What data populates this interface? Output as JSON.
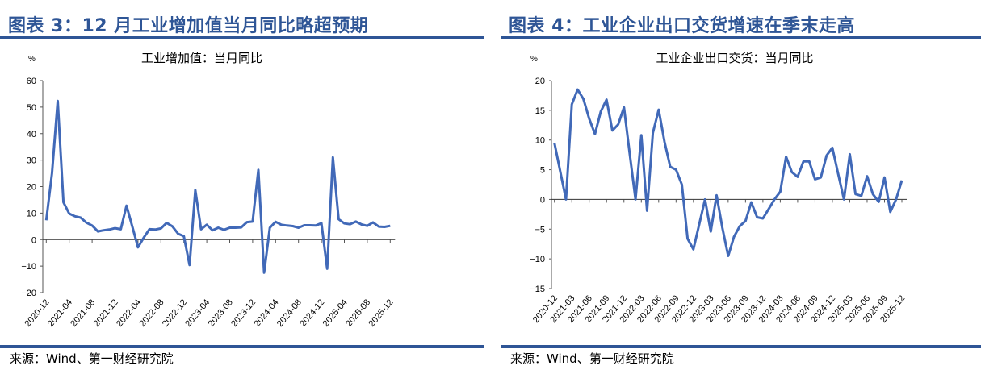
{
  "panels": [
    {
      "title": "图表 3：12 月工业增加值当月同比略超预期",
      "source": "来源：Wind、第一财经研究院"
    },
    {
      "title": "图表 4：工业企业出口交货增速在季末走高",
      "source": "来源：Wind、第一财经研究院"
    }
  ],
  "colors": {
    "accent": "#2e5596",
    "line": "#4169b8"
  },
  "chart_data": [
    {
      "type": "line",
      "title": "工业增加值：当月同比",
      "ylabel": "%",
      "ylim": [
        -20,
        60
      ],
      "yticks": [
        60,
        50,
        40,
        30,
        20,
        10,
        0,
        -10,
        -20
      ],
      "x_start": "2020-12",
      "tick_every": 4,
      "xticks": [
        "2020-12",
        "2021-04",
        "2021-08",
        "2021-12",
        "2022-04",
        "2022-08",
        "2022-12",
        "2023-04",
        "2023-08",
        "2023-12",
        "2024-04",
        "2024-08",
        "2024-12",
        "2025-04",
        "2025-08",
        "2025-12"
      ],
      "grid": false,
      "values": [
        7.3,
        25,
        52.3,
        14.1,
        9.8,
        8.8,
        8.3,
        6.4,
        5.3,
        3.1,
        3.5,
        3.8,
        4.3,
        3.9,
        12.8,
        5.0,
        -2.9,
        0.7,
        3.9,
        3.8,
        4.2,
        6.3,
        5.0,
        2.2,
        1.3,
        -9.6,
        18.7,
        3.9,
        5.6,
        3.5,
        4.5,
        3.7,
        4.5,
        4.5,
        4.6,
        6.6,
        6.8,
        26.3,
        -12.5,
        4.5,
        6.7,
        5.6,
        5.3,
        5.1,
        4.5,
        5.4,
        5.4,
        5.3,
        6.2,
        -11,
        31,
        7.7,
        6.1,
        5.8,
        6.8,
        5.7,
        5.2,
        6.5,
        4.9,
        4.8,
        5.2
      ]
    },
    {
      "type": "line",
      "title": "工业企业出口交货：当月同比",
      "ylabel": "%",
      "ylim": [
        -15,
        20
      ],
      "yticks": [
        20,
        15,
        10,
        5,
        0,
        -5,
        -10,
        -15
      ],
      "x_start": "2020-12",
      "tick_every": 3,
      "xticks": [
        "2020-12",
        "2021-03",
        "2021-06",
        "2021-09",
        "2021-12",
        "2022-03",
        "2022-06",
        "2022-09",
        "2022-12",
        "2023-03",
        "2023-06",
        "2023-09",
        "2023-12",
        "2024-03",
        "2024-06",
        "2024-09",
        "2024-12",
        "2025-03",
        "2025-06",
        "2025-09",
        "2025-12"
      ],
      "grid": false,
      "values": [
        9.5,
        4.7,
        0,
        16,
        18.5,
        16.9,
        13.6,
        11.0,
        14.8,
        16.8,
        11.6,
        12.6,
        15.5,
        7.7,
        0,
        10.8,
        -1.9,
        11.2,
        15.1,
        9.7,
        5.5,
        5.0,
        2.5,
        -6.6,
        -8.4,
        -4.2,
        0,
        -5.4,
        0.7,
        -4.8,
        -9.5,
        -6.3,
        -4.5,
        -3.6,
        -0.5,
        -3.0,
        -3.2,
        -1.6,
        0,
        1.3,
        7.2,
        4.6,
        3.8,
        6.4,
        6.4,
        3.4,
        3.7,
        7.4,
        8.7,
        4.3,
        0,
        7.6,
        0.9,
        0.6,
        3.9,
        0.9,
        -0.4,
        3.7,
        -2.1,
        0,
        3.2
      ]
    }
  ]
}
